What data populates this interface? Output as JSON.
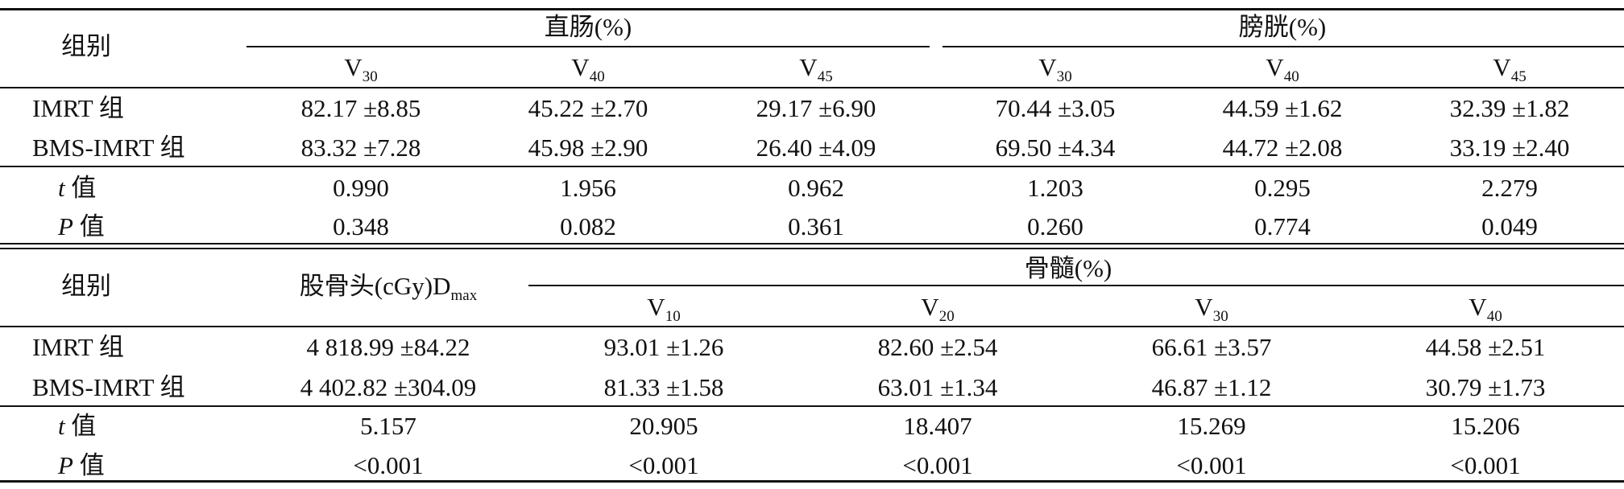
{
  "table1": {
    "group_header": "组别",
    "rectum_header": "直肠(%)",
    "bladder_header": "膀胱(%)",
    "sub_headers": [
      {
        "base": "V",
        "sub": "30"
      },
      {
        "base": "V",
        "sub": "40"
      },
      {
        "base": "V",
        "sub": "45"
      },
      {
        "base": "V",
        "sub": "30"
      },
      {
        "base": "V",
        "sub": "40"
      },
      {
        "base": "V",
        "sub": "45"
      }
    ],
    "rows": [
      {
        "label": "IMRT 组",
        "values": [
          "82.17 ±8.85",
          "45.22 ±2.70",
          "29.17 ±6.90",
          "70.44 ±3.05",
          "44.59 ±1.62",
          "32.39 ±1.82"
        ]
      },
      {
        "label": "BMS-IMRT 组",
        "values": [
          "83.32 ±7.28",
          "45.98 ±2.90",
          "26.40 ±4.09",
          "69.50 ±4.34",
          "44.72 ±2.08",
          "33.19 ±2.40"
        ]
      }
    ],
    "stats": [
      {
        "italic": "t",
        "suffix": " 值",
        "values": [
          "0.990",
          "1.956",
          "0.962",
          "1.203",
          "0.295",
          "2.279"
        ]
      },
      {
        "italic": "P",
        "suffix": " 值",
        "values": [
          "0.348",
          "0.082",
          "0.361",
          "0.260",
          "0.774",
          "0.049"
        ]
      }
    ]
  },
  "table2": {
    "group_header": "组别",
    "femoral_header": {
      "text": "股骨头(cGy)D",
      "sub": "max"
    },
    "marrow_header": "骨髓(%)",
    "sub_headers": [
      {
        "base": "V",
        "sub": "10"
      },
      {
        "base": "V",
        "sub": "20"
      },
      {
        "base": "V",
        "sub": "30"
      },
      {
        "base": "V",
        "sub": "40"
      }
    ],
    "rows": [
      {
        "label": "IMRT 组",
        "values": [
          "4 818.99 ±84.22",
          "93.01 ±1.26",
          "82.60 ±2.54",
          "66.61 ±3.57",
          "44.58 ±2.51"
        ]
      },
      {
        "label": "BMS-IMRT 组",
        "values": [
          "4 402.82 ±304.09",
          "81.33 ±1.58",
          "63.01 ±1.34",
          "46.87 ±1.12",
          "30.79 ±1.73"
        ]
      }
    ],
    "stats": [
      {
        "italic": "t",
        "suffix": " 值",
        "values": [
          "5.157",
          "20.905",
          "18.407",
          "15.269",
          "15.206"
        ]
      },
      {
        "italic": "P",
        "suffix": " 值",
        "values": [
          "<0.001",
          "<0.001",
          "<0.001",
          "<0.001",
          "<0.001"
        ]
      }
    ]
  }
}
